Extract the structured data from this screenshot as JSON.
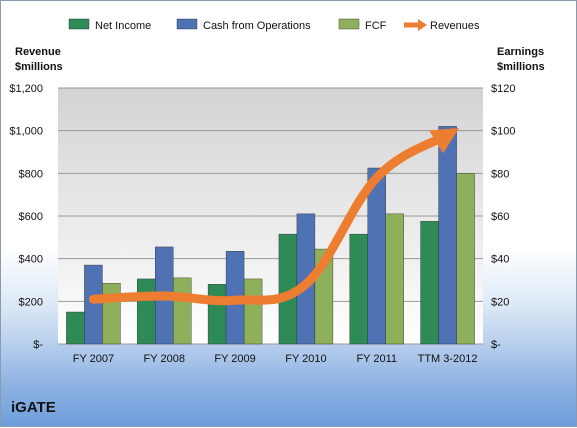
{
  "chart_data": {
    "type": "bar",
    "categories": [
      "FY 2007",
      "FY 2008",
      "FY 2009",
      "FY 2010",
      "FY 2011",
      "TTM 3-2012"
    ],
    "series": [
      {
        "name": "Net Income",
        "axis": "right",
        "values": [
          15,
          30.5,
          28,
          51.5,
          51.5,
          57.5
        ],
        "color": "#2e8b57"
      },
      {
        "name": "Cash from Operations",
        "axis": "right",
        "values": [
          37,
          45.5,
          43.5,
          61,
          82.5,
          102
        ],
        "color": "#4f72b4"
      },
      {
        "name": "FCF",
        "axis": "right",
        "values": [
          28.5,
          31,
          30.5,
          44.5,
          61,
          80
        ],
        "color": "#8fb05a"
      },
      {
        "name": "Revenues",
        "axis": "left",
        "type": "line",
        "values": [
          210,
          225,
          205,
          280,
          780,
          980
        ],
        "color": "#ec7d31"
      }
    ],
    "ylabel_left": "Revenue\n$millions",
    "ylabel_right": "Earnings\n$millions",
    "ylim_left": [
      0,
      1200
    ],
    "ylim_right": [
      0,
      120
    ],
    "yticks_left": [
      "$-",
      "$200",
      "$400",
      "$600",
      "$800",
      "$1,000",
      "$1,200"
    ],
    "yticks_right": [
      "$-",
      "$20",
      "$40",
      "$60",
      "$80",
      "$100",
      "$120"
    ],
    "grid": true,
    "legend_position": "top",
    "caption": "iGATE"
  }
}
